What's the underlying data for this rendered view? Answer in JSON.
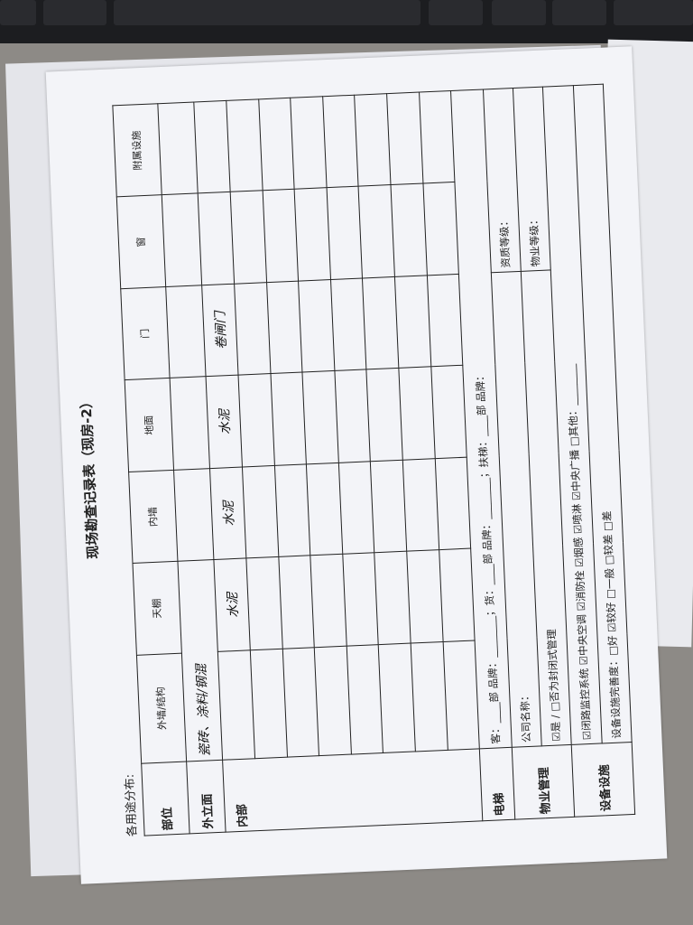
{
  "document": {
    "title": "现场勘查记录表（现房-2）",
    "usage_distribution_label": "各用途分布:",
    "headers": {
      "part": "部位",
      "wall": "外墙/结构",
      "ceiling": "天棚",
      "inner_wall": "内墙",
      "floor": "地面",
      "door": "门",
      "window": "窗",
      "attached": "附属设施"
    },
    "facade": {
      "label": "外立面",
      "wall_value": "瓷砖、涂料/钢混"
    },
    "interior": {
      "label": "内部",
      "ceiling_value": "水泥",
      "inner_wall_value": "水泥",
      "floor_value": "水泥",
      "door_value": "卷闸门"
    },
    "elevator": {
      "label": "电梯",
      "text": "客：____部 品牌：________；货：____部 品牌：________；扶梯：____部 品牌："
    },
    "property": {
      "label": "物业管理",
      "company": "公司名称：",
      "qualification": "资质等级：",
      "closed": "☑是 / □否为封闭式管理",
      "grade": "物业等级："
    },
    "equipment": {
      "label": "设备设施",
      "systems": "☑闭路监控系统 ☑中央空调 ☑消防栓 ☑烟感 ☑喷淋 ☑中央广播 □其他：________",
      "completeness": "设备设施完善度：□好 ☑较好 □一般 □较差 □差"
    }
  }
}
